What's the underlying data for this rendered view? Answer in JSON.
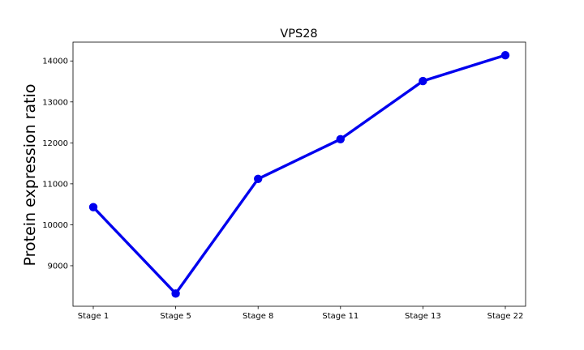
{
  "chart_data": {
    "type": "line",
    "title": "VPS28",
    "xlabel": "",
    "ylabel": "Protein expression ratio",
    "categories": [
      "Stage 1",
      "Stage 5",
      "Stage 8",
      "Stage 11",
      "Stage 13",
      "Stage 22"
    ],
    "series": [
      {
        "values": [
          10430,
          8320,
          11120,
          12090,
          13510,
          14140
        ],
        "color": "#0000ee"
      }
    ],
    "yticks": [
      9000,
      10000,
      11000,
      12000,
      13000,
      14000
    ],
    "ylim": [
      8010,
      14460
    ],
    "grid": false,
    "legend": "none"
  }
}
